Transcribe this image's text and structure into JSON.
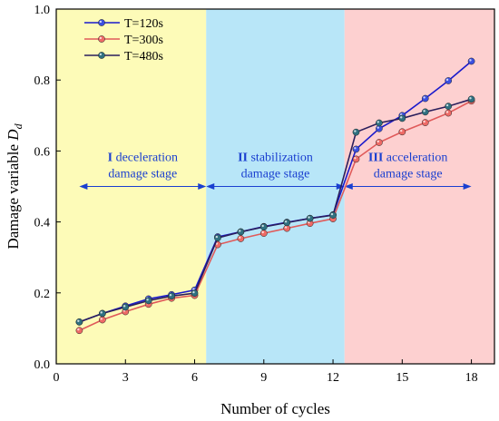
{
  "chart_data": {
    "type": "line",
    "xlabel": "Number of cycles",
    "ylabel_main": "Damage variable ",
    "ylabel_symbol": "D",
    "ylabel_sub": "d",
    "xlim": [
      0,
      19
    ],
    "ylim": [
      0.0,
      1.0
    ],
    "xticks": [
      0,
      3,
      6,
      9,
      12,
      15,
      18
    ],
    "yticks": [
      0.0,
      0.2,
      0.4,
      0.6,
      0.8,
      1.0
    ],
    "ytick_labels": [
      "0.0",
      "0.2",
      "0.4",
      "0.6",
      "0.8",
      "1.0"
    ],
    "grid": false,
    "legend_position": "top-left",
    "x": [
      1,
      2,
      3,
      4,
      5,
      6,
      7,
      8,
      9,
      10,
      11,
      12,
      13,
      14,
      15,
      16,
      17,
      18
    ],
    "series": [
      {
        "name": "T=120s",
        "color": "#1a1acc",
        "marker_color": "#3b4fe0",
        "values": [
          0.118,
          0.142,
          0.163,
          0.183,
          0.195,
          0.208,
          0.358,
          0.372,
          0.387,
          0.399,
          0.41,
          0.42,
          0.605,
          0.663,
          0.7,
          0.748,
          0.798,
          0.853
        ]
      },
      {
        "name": "T=300s",
        "color": "#e05a5a",
        "marker_color": "#ee6a66",
        "values": [
          0.094,
          0.124,
          0.147,
          0.168,
          0.185,
          0.193,
          0.336,
          0.353,
          0.368,
          0.382,
          0.396,
          0.409,
          0.577,
          0.624,
          0.654,
          0.68,
          0.707,
          0.741
        ]
      },
      {
        "name": "T=480s",
        "color": "#2a1e5c",
        "marker_color": "#2f7080",
        "values": [
          0.118,
          0.142,
          0.16,
          0.178,
          0.191,
          0.199,
          0.355,
          0.372,
          0.386,
          0.398,
          0.41,
          0.419,
          0.653,
          0.679,
          0.692,
          0.71,
          0.726,
          0.746
        ]
      }
    ],
    "regions": [
      {
        "x_start": 0,
        "x_end": 6.5,
        "color": "#fdfbb8"
      },
      {
        "x_start": 6.5,
        "x_end": 12.5,
        "color": "#b8e6f8"
      },
      {
        "x_start": 12.5,
        "x_end": 19,
        "color": "#fdd0d0"
      }
    ],
    "stages": [
      {
        "x_start": 1,
        "x_end": 6.5,
        "y": 0.5,
        "roman": "I",
        "line1": " deceleration",
        "line2": "damage stage"
      },
      {
        "x_start": 6.5,
        "x_end": 12.5,
        "y": 0.5,
        "roman": "II",
        "line1": " stabilization",
        "line2": "damage stage"
      },
      {
        "x_start": 12.5,
        "x_end": 18,
        "y": 0.5,
        "roman": "III",
        "line1": " acceleration",
        "line2": "damage stage"
      }
    ],
    "annotation_color": "#1a3fd0"
  }
}
